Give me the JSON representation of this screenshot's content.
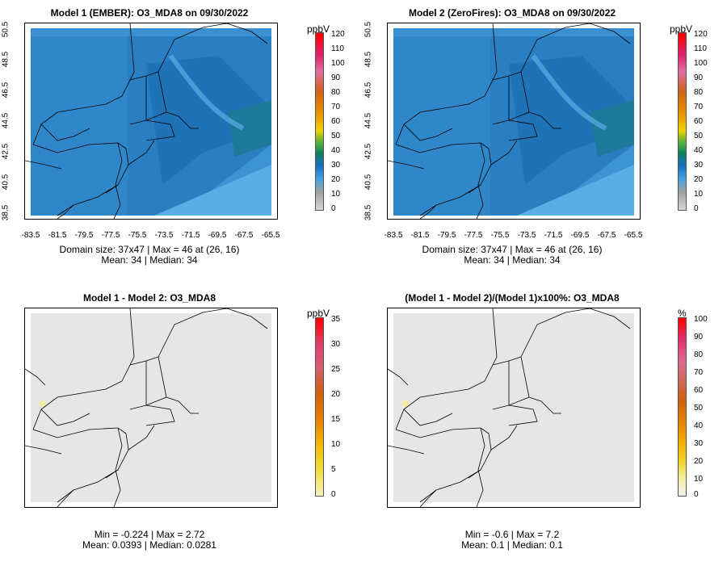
{
  "panels": [
    {
      "title": "Model 1 (EMBER): O3_MDA8 on 09/30/2022",
      "unit": "ppbV",
      "stats_line1": "Domain size: 37x47 | Max = 46 at (26, 16)",
      "stats_line2": "Mean: 34 |  Median: 34",
      "colorbar_ticks": [
        "120",
        "110",
        "100",
        "90",
        "80",
        "70",
        "60",
        "50",
        "40",
        "30",
        "20",
        "10",
        "0"
      ],
      "lat_ticks": [
        "50.5",
        "48.5",
        "46.5",
        "44.5",
        "42.5",
        "40.5",
        "38.5"
      ],
      "lon_ticks": [
        "-83.5",
        "-81.5",
        "-79.5",
        "-77.5",
        "-75.5",
        "-73.5",
        "-71.5",
        "-69.5",
        "-67.5",
        "-65.5"
      ]
    },
    {
      "title": "Model 2 (ZeroFires): O3_MDA8 on 09/30/2022",
      "unit": "ppbV",
      "stats_line1": "Domain size: 37x47 | Max = 46 at (26, 16)",
      "stats_line2": "Mean: 34 |  Median: 34",
      "colorbar_ticks": [
        "120",
        "110",
        "100",
        "90",
        "80",
        "70",
        "60",
        "50",
        "40",
        "30",
        "20",
        "10",
        "0"
      ],
      "lat_ticks": [
        "50.5",
        "48.5",
        "46.5",
        "44.5",
        "42.5",
        "40.5",
        "38.5"
      ],
      "lon_ticks": [
        "-83.5",
        "-81.5",
        "-79.5",
        "-77.5",
        "-75.5",
        "-73.5",
        "-71.5",
        "-69.5",
        "-67.5",
        "-65.5"
      ]
    },
    {
      "title": "Model 1 - Model 2: O3_MDA8",
      "unit": "ppbV",
      "stats_line1": "Min = -0.224 | Max = 2.72",
      "stats_line2": "Mean: 0.0393 |  Median: 0.0281",
      "colorbar_ticks": [
        "35",
        "30",
        "25",
        "20",
        "15",
        "10",
        "5",
        "0"
      ]
    },
    {
      "title": "(Model 1 - Model 2)/(Model 1)x100%: O3_MDA8",
      "unit": "%",
      "stats_line1": "Min = -0.6 | Max = 7.2",
      "stats_line2": "Mean: 0.1 |  Median: 0.1",
      "colorbar_ticks": [
        "100",
        "90",
        "80",
        "70",
        "60",
        "50",
        "40",
        "30",
        "20",
        "10",
        "0"
      ]
    }
  ],
  "colors": {
    "ozone_low": "#2f86c8",
    "ozone_mid": "#1f72b6",
    "ozone_light": "#5aaee6",
    "diff_bg": "#e6e6e6"
  }
}
